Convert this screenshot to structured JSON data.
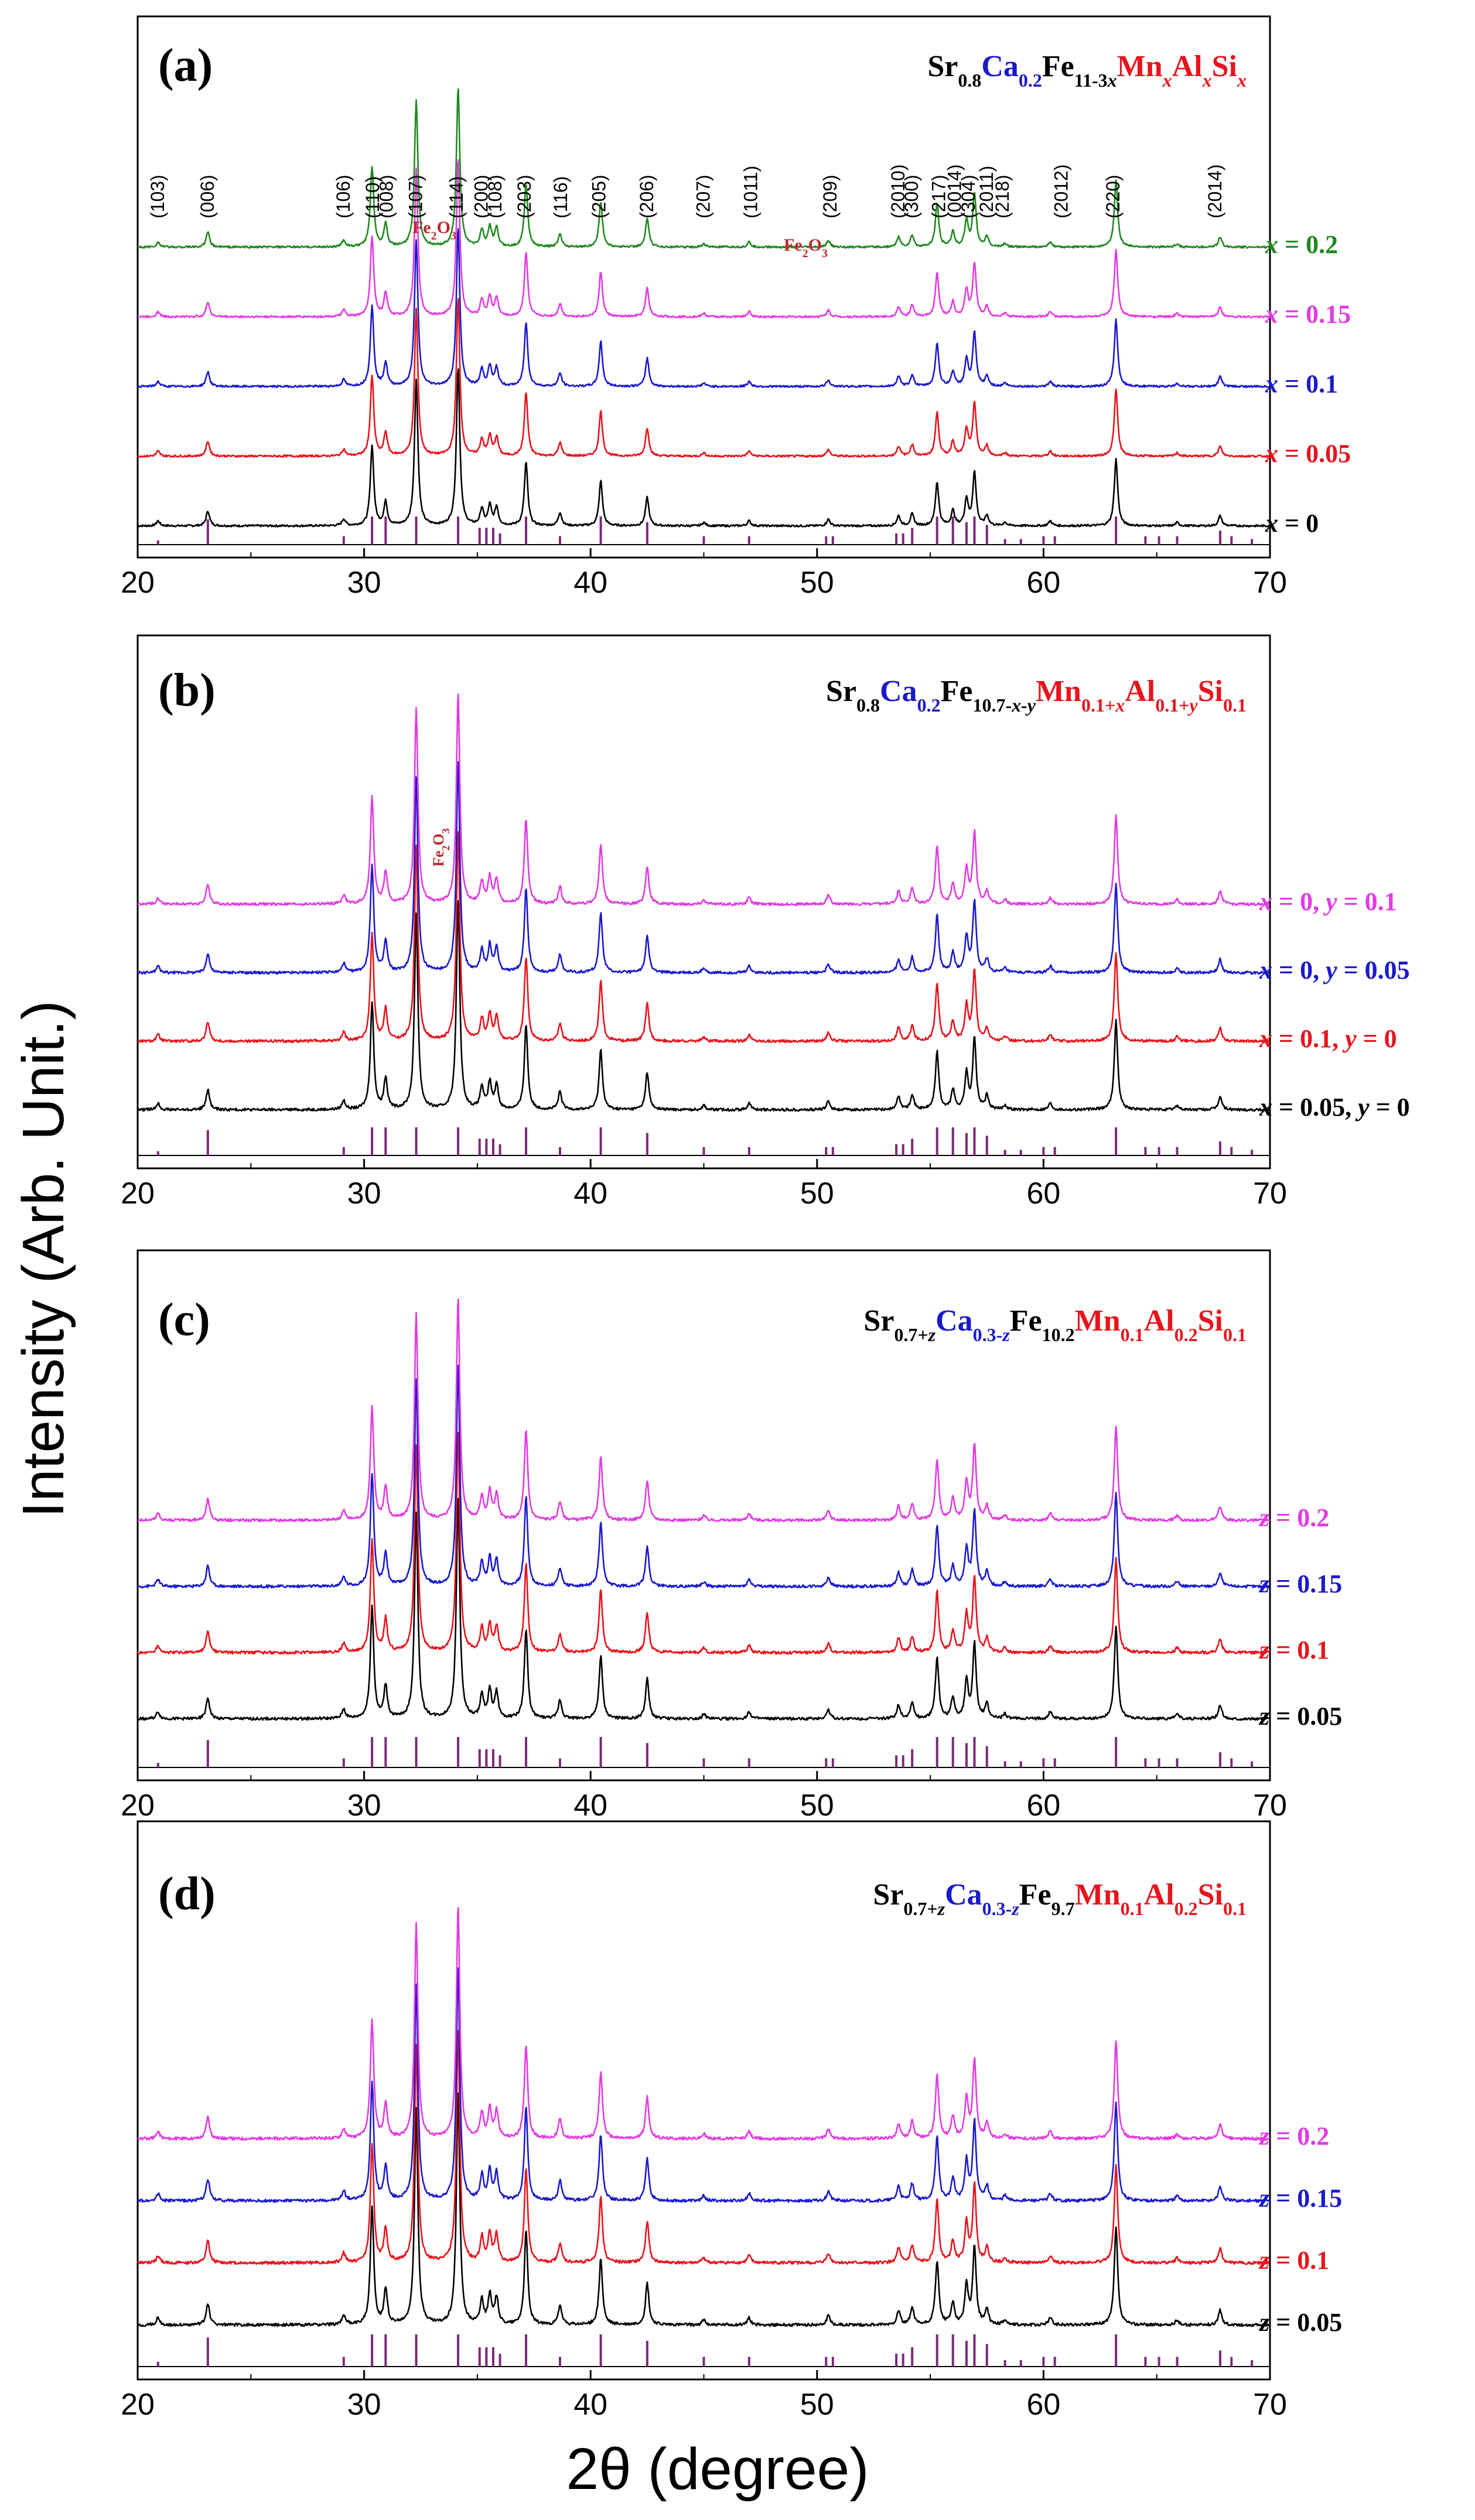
{
  "figure": {
    "ylabel": "Intensity (Arb. Unit.)",
    "xlabel": "2θ (degree)",
    "colors": {
      "black": "#000000",
      "red": "#e8141c",
      "blue": "#1a1acc",
      "magenta": "#e23be2",
      "green": "#1f8a1f",
      "reference": "#7a2a7a",
      "fe2o3": "#c0282a"
    }
  },
  "chart_data": [
    {
      "type": "line",
      "panel": "(a)",
      "title_parts": [
        {
          "t": "Sr",
          "c": "black"
        },
        {
          "t": "0.8",
          "c": "black",
          "sub": true
        },
        {
          "t": "Ca",
          "c": "blue"
        },
        {
          "t": "0.2",
          "c": "blue",
          "sub": true
        },
        {
          "t": "Fe",
          "c": "black"
        },
        {
          "t": "11-3",
          "c": "black",
          "sub": true
        },
        {
          "t": "x",
          "c": "black",
          "sub": true,
          "it": true
        },
        {
          "t": "Mn",
          "c": "red"
        },
        {
          "t": "x",
          "c": "red",
          "sub": true,
          "it": true
        },
        {
          "t": "Al",
          "c": "red"
        },
        {
          "t": "x",
          "c": "red",
          "sub": true,
          "it": true
        },
        {
          "t": "Si",
          "c": "red"
        },
        {
          "t": "x",
          "c": "red",
          "sub": true,
          "it": true
        }
      ],
      "xlim": [
        20,
        70
      ],
      "xticks": [
        "20",
        "30",
        "40",
        "50",
        "60",
        "70"
      ],
      "series": [
        {
          "name": "x = 0",
          "var": "x",
          "rest": " = 0",
          "color": "black"
        },
        {
          "name": "x = 0.05",
          "var": "x",
          "rest": " = 0.05",
          "color": "red"
        },
        {
          "name": "x = 0.1",
          "var": "x",
          "rest": " = 0.1",
          "color": "blue"
        },
        {
          "name": "x = 0.15",
          "var": "x",
          "rest": " = 0.15",
          "color": "magenta"
        },
        {
          "name": "x = 0.2",
          "var": "x",
          "rest": " = 0.2",
          "color": "green"
        }
      ],
      "hkl_labels": [
        {
          "label": "(103)",
          "x": 20.9
        },
        {
          "label": "(006)",
          "x": 23.1
        },
        {
          "label": "(106)",
          "x": 29.1
        },
        {
          "label": "(110)",
          "x": 30.4
        },
        {
          "label": "(008)",
          "x": 31.0
        },
        {
          "label": "(107)",
          "x": 32.3
        },
        {
          "label": "(114)",
          "x": 34.1
        },
        {
          "label": "(200)",
          "x": 35.2
        },
        {
          "label": "(108)",
          "x": 35.8
        },
        {
          "label": "(203)",
          "x": 37.1
        },
        {
          "label": "(116)",
          "x": 38.7
        },
        {
          "label": "(205)",
          "x": 40.4
        },
        {
          "label": "(206)",
          "x": 42.5
        },
        {
          "label": "(207)",
          "x": 45.0
        },
        {
          "label": "(1011)",
          "x": 47.1
        },
        {
          "label": "(209)",
          "x": 50.6
        },
        {
          "label": "(2010)",
          "x": 53.6
        },
        {
          "label": "(300)",
          "x": 54.2
        },
        {
          "label": "(217)",
          "x": 55.4
        },
        {
          "label": "(0014)",
          "x": 56.1
        },
        {
          "label": "(304)",
          "x": 56.7
        },
        {
          "label": "(2011)",
          "x": 57.5
        },
        {
          "label": "(218)",
          "x": 58.2
        },
        {
          "label": "(2012)",
          "x": 60.8
        },
        {
          "label": "(220)",
          "x": 63.1
        },
        {
          "label": "(2014)",
          "x": 67.6
        }
      ],
      "fe2o3_marks": [
        {
          "label": "Fe",
          "sub": "2",
          "tail": "O",
          "sub2": "3",
          "x": 33.1
        },
        {
          "label": "Fe",
          "sub": "2",
          "tail": "O",
          "sub2": "3",
          "x": 49.5
        }
      ]
    },
    {
      "type": "line",
      "panel": "(b)",
      "title_parts": [
        {
          "t": "Sr",
          "c": "black"
        },
        {
          "t": "0.8",
          "c": "black",
          "sub": true
        },
        {
          "t": "Ca",
          "c": "blue"
        },
        {
          "t": "0.2",
          "c": "blue",
          "sub": true
        },
        {
          "t": "Fe",
          "c": "black"
        },
        {
          "t": "10.7-",
          "c": "black",
          "sub": true
        },
        {
          "t": "x-y",
          "c": "black",
          "sub": true,
          "it": true
        },
        {
          "t": "Mn",
          "c": "red"
        },
        {
          "t": "0.1+",
          "c": "red",
          "sub": true
        },
        {
          "t": "x",
          "c": "red",
          "sub": true,
          "it": true
        },
        {
          "t": "Al",
          "c": "red"
        },
        {
          "t": "0.1+",
          "c": "red",
          "sub": true
        },
        {
          "t": "y",
          "c": "red",
          "sub": true,
          "it": true
        },
        {
          "t": "Si",
          "c": "red"
        },
        {
          "t": "0.1",
          "c": "red",
          "sub": true
        }
      ],
      "xlim": [
        20,
        70
      ],
      "xticks": [
        "20",
        "30",
        "40",
        "50",
        "60",
        "70"
      ],
      "series": [
        {
          "name": "x = 0.05, y = 0",
          "var": "x",
          "rest": " = 0.05, ",
          "var2": "y",
          "rest2": " = 0",
          "color": "black"
        },
        {
          "name": "x = 0.1, y = 0",
          "var": "x",
          "rest": " = 0.1, ",
          "var2": "y",
          "rest2": " = 0",
          "color": "red"
        },
        {
          "name": "x = 0, y = 0.05",
          "var": "x",
          "rest": " = 0, ",
          "var2": "y",
          "rest2": " = 0.05",
          "color": "blue"
        },
        {
          "name": "x = 0, y = 0.1",
          "var": "x",
          "rest": " = 0, ",
          "var2": "y",
          "rest2": " = 0.1",
          "color": "magenta"
        }
      ],
      "fe2o3_marks": [
        {
          "label": "Fe",
          "sub": "2",
          "tail": "O",
          "sub2": "3",
          "x": 33.3
        }
      ]
    },
    {
      "type": "line",
      "panel": "(c)",
      "title_parts": [
        {
          "t": "Sr",
          "c": "black"
        },
        {
          "t": "0.7+",
          "c": "black",
          "sub": true
        },
        {
          "t": "z",
          "c": "black",
          "sub": true,
          "it": true
        },
        {
          "t": "Ca",
          "c": "blue"
        },
        {
          "t": "0.3-",
          "c": "blue",
          "sub": true
        },
        {
          "t": "z",
          "c": "blue",
          "sub": true,
          "it": true
        },
        {
          "t": "Fe",
          "c": "black"
        },
        {
          "t": "10.2",
          "c": "black",
          "sub": true
        },
        {
          "t": "Mn",
          "c": "red"
        },
        {
          "t": "0.1",
          "c": "red",
          "sub": true
        },
        {
          "t": "Al",
          "c": "red"
        },
        {
          "t": "0.2",
          "c": "red",
          "sub": true
        },
        {
          "t": "Si",
          "c": "red"
        },
        {
          "t": "0.1",
          "c": "red",
          "sub": true
        }
      ],
      "xlim": [
        20,
        70
      ],
      "xticks": [
        "20",
        "30",
        "40",
        "50",
        "60",
        "70"
      ],
      "series": [
        {
          "name": "z = 0.05",
          "var": "z",
          "rest": " = 0.05",
          "color": "black"
        },
        {
          "name": "z = 0.1",
          "var": "z",
          "rest": " = 0.1",
          "color": "red"
        },
        {
          "name": "z = 0.15",
          "var": "z",
          "rest": " = 0.15",
          "color": "blue"
        },
        {
          "name": "z = 0.2",
          "var": "z",
          "rest": " = 0.2",
          "color": "magenta"
        }
      ]
    },
    {
      "type": "line",
      "panel": "(d)",
      "title_parts": [
        {
          "t": "Sr",
          "c": "black"
        },
        {
          "t": "0.7+",
          "c": "black",
          "sub": true
        },
        {
          "t": "z",
          "c": "black",
          "sub": true,
          "it": true
        },
        {
          "t": "Ca",
          "c": "blue"
        },
        {
          "t": "0.3-",
          "c": "blue",
          "sub": true
        },
        {
          "t": "z",
          "c": "blue",
          "sub": true,
          "it": true
        },
        {
          "t": "Fe",
          "c": "black"
        },
        {
          "t": "9.7",
          "c": "black",
          "sub": true
        },
        {
          "t": "Mn",
          "c": "red"
        },
        {
          "t": "0.1",
          "c": "red",
          "sub": true
        },
        {
          "t": "Al",
          "c": "red"
        },
        {
          "t": "0.2",
          "c": "red",
          "sub": true
        },
        {
          "t": "Si",
          "c": "red"
        },
        {
          "t": "0.1",
          "c": "red",
          "sub": true
        }
      ],
      "xlim": [
        20,
        70
      ],
      "xticks": [
        "20",
        "30",
        "40",
        "50",
        "60",
        "70"
      ],
      "series": [
        {
          "name": "z = 0.05",
          "var": "z",
          "rest": " = 0.05",
          "color": "black"
        },
        {
          "name": "z = 0.1",
          "var": "z",
          "rest": " = 0.1",
          "color": "red"
        },
        {
          "name": "z = 0.15",
          "var": "z",
          "rest": " = 0.15",
          "color": "blue"
        },
        {
          "name": "z = 0.2",
          "var": "z",
          "rest": " = 0.2",
          "color": "magenta"
        }
      ]
    }
  ],
  "peaks": [
    {
      "x": 20.9,
      "h": 0.03
    },
    {
      "x": 23.1,
      "h": 0.09
    },
    {
      "x": 29.1,
      "h": 0.04
    },
    {
      "x": 30.35,
      "h": 0.48
    },
    {
      "x": 30.95,
      "h": 0.14
    },
    {
      "x": 32.3,
      "h": 0.88
    },
    {
      "x": 34.15,
      "h": 0.95
    },
    {
      "x": 35.2,
      "h": 0.1
    },
    {
      "x": 35.55,
      "h": 0.12
    },
    {
      "x": 35.85,
      "h": 0.11
    },
    {
      "x": 37.15,
      "h": 0.38
    },
    {
      "x": 38.65,
      "h": 0.08
    },
    {
      "x": 40.45,
      "h": 0.27
    },
    {
      "x": 42.5,
      "h": 0.17
    },
    {
      "x": 45.0,
      "h": 0.02
    },
    {
      "x": 47.0,
      "h": 0.03
    },
    {
      "x": 50.5,
      "h": 0.04
    },
    {
      "x": 53.6,
      "h": 0.06
    },
    {
      "x": 54.2,
      "h": 0.07
    },
    {
      "x": 55.3,
      "h": 0.26
    },
    {
      "x": 56.0,
      "h": 0.09
    },
    {
      "x": 56.6,
      "h": 0.16
    },
    {
      "x": 56.95,
      "h": 0.32
    },
    {
      "x": 57.5,
      "h": 0.06
    },
    {
      "x": 58.3,
      "h": 0.02
    },
    {
      "x": 60.3,
      "h": 0.03
    },
    {
      "x": 63.2,
      "h": 0.4
    },
    {
      "x": 65.9,
      "h": 0.02
    },
    {
      "x": 67.8,
      "h": 0.06
    }
  ],
  "reference_sticks": [
    {
      "x": 20.9,
      "h": 0.15
    },
    {
      "x": 23.1,
      "h": 0.9
    },
    {
      "x": 29.1,
      "h": 0.3
    },
    {
      "x": 30.35,
      "h": 1.0
    },
    {
      "x": 30.95,
      "h": 1.0
    },
    {
      "x": 32.3,
      "h": 1.0
    },
    {
      "x": 34.15,
      "h": 1.0
    },
    {
      "x": 35.1,
      "h": 0.6
    },
    {
      "x": 35.4,
      "h": 0.6
    },
    {
      "x": 35.7,
      "h": 0.6
    },
    {
      "x": 36.0,
      "h": 0.4
    },
    {
      "x": 37.15,
      "h": 1.0
    },
    {
      "x": 38.65,
      "h": 0.3
    },
    {
      "x": 40.45,
      "h": 1.0
    },
    {
      "x": 42.5,
      "h": 0.8
    },
    {
      "x": 45.0,
      "h": 0.3
    },
    {
      "x": 47.0,
      "h": 0.3
    },
    {
      "x": 50.4,
      "h": 0.3
    },
    {
      "x": 50.7,
      "h": 0.3
    },
    {
      "x": 53.5,
      "h": 0.4
    },
    {
      "x": 53.8,
      "h": 0.4
    },
    {
      "x": 54.2,
      "h": 0.6
    },
    {
      "x": 55.3,
      "h": 1.0
    },
    {
      "x": 56.0,
      "h": 1.0
    },
    {
      "x": 56.6,
      "h": 0.8
    },
    {
      "x": 56.95,
      "h": 1.0
    },
    {
      "x": 57.5,
      "h": 0.7
    },
    {
      "x": 58.3,
      "h": 0.2
    },
    {
      "x": 59.0,
      "h": 0.2
    },
    {
      "x": 60.0,
      "h": 0.3
    },
    {
      "x": 60.5,
      "h": 0.3
    },
    {
      "x": 63.2,
      "h": 1.0
    },
    {
      "x": 64.5,
      "h": 0.3
    },
    {
      "x": 65.1,
      "h": 0.3
    },
    {
      "x": 65.9,
      "h": 0.3
    },
    {
      "x": 67.8,
      "h": 0.5
    },
    {
      "x": 68.3,
      "h": 0.3
    },
    {
      "x": 69.2,
      "h": 0.2
    }
  ]
}
